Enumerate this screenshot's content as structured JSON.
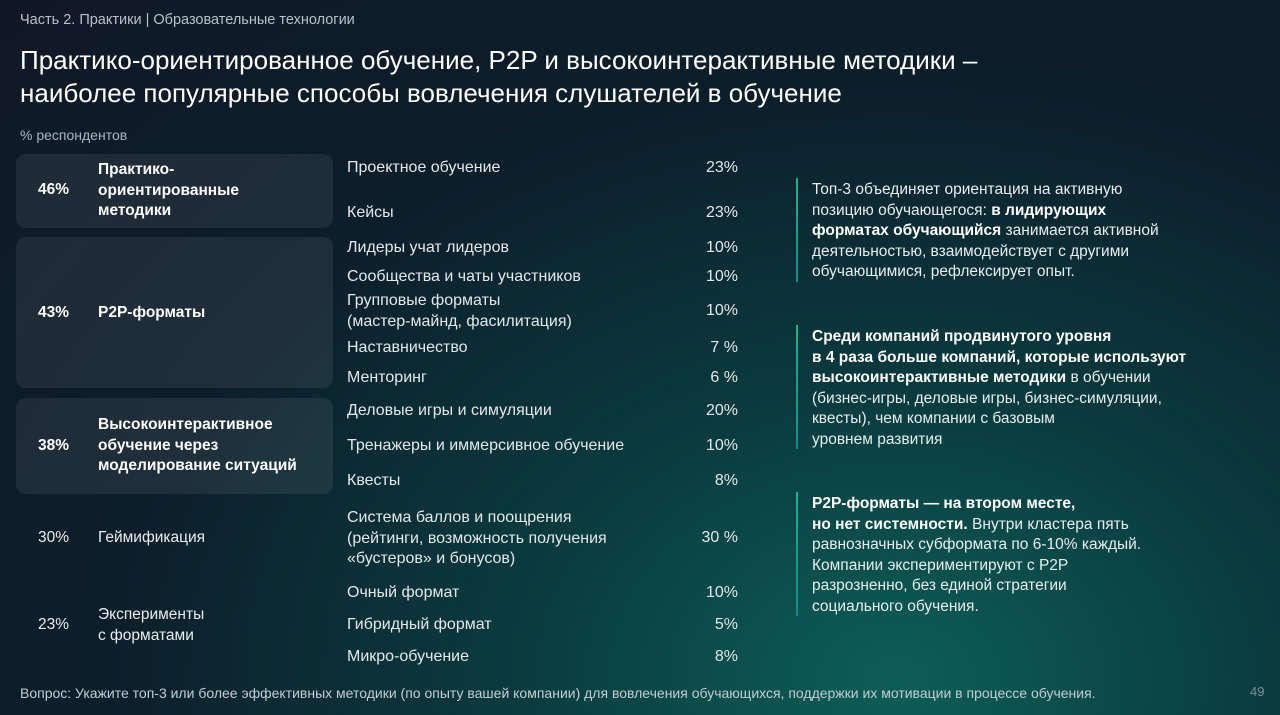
{
  "breadcrumb": "Часть 2. Практики | Образовательные технологии",
  "title_line1": "Практико-ориентированное обучение, P2P и высокоинтерактивные методики –",
  "title_line2": "наиболее популярные способы вовлечения слушателей в обучение",
  "unit_label": "% респондентов",
  "categories": [
    {
      "percent": "46%",
      "name_lines": [
        "Практико-",
        "ориентированные",
        "методики"
      ],
      "items": [
        {
          "label": [
            "Проектное обучение"
          ],
          "value": "23%"
        },
        {
          "label": [
            "Кейсы"
          ],
          "value": "23%"
        }
      ]
    },
    {
      "percent": "43%",
      "name_lines": [
        "P2P-форматы"
      ],
      "items": [
        {
          "label": [
            "Лидеры учат лидеров"
          ],
          "value": "10%"
        },
        {
          "label": [
            "Сообщества и чаты участников"
          ],
          "value": "10%"
        },
        {
          "label": [
            "Групповые форматы",
            "(мастер-майнд, фасилитация)"
          ],
          "value": "10%"
        },
        {
          "label": [
            "Наставничество"
          ],
          "value": "7 %"
        },
        {
          "label": [
            "Менторинг"
          ],
          "value": "6 %"
        }
      ]
    },
    {
      "percent": "38%",
      "name_lines": [
        "Высокоинтерактивное",
        "обучение через",
        "моделирование ситуаций"
      ],
      "items": [
        {
          "label": [
            "Деловые игры и симуляции"
          ],
          "value": "20%"
        },
        {
          "label": [
            "Тренажеры и иммерсивное обучение"
          ],
          "value": "10%"
        },
        {
          "label": [
            "Квесты"
          ],
          "value": "8%"
        }
      ]
    },
    {
      "percent": "30%",
      "name_lines": [
        "Геймификация"
      ],
      "items": [
        {
          "label": [
            "Система баллов и поощрения",
            "(рейтинги, возможность получения",
            "«бустеров» и бонусов)"
          ],
          "value": "30 %"
        }
      ]
    },
    {
      "percent": "23%",
      "name_lines": [
        "Эксперименты",
        "с форматами"
      ],
      "items": [
        {
          "label": [
            "Очный формат"
          ],
          "value": "10%"
        },
        {
          "label": [
            "Гибридный формат"
          ],
          "value": "5%"
        },
        {
          "label": [
            "Микро-обучение"
          ],
          "value": "8%"
        }
      ]
    }
  ],
  "notes": [
    {
      "line1": "Топ-3 объединяет ориентация на активную",
      "line2a": "позицию обучающегося: ",
      "line2b": "в лидирующих",
      "line3a": "форматах обучающийся",
      "line3b": " занимается активной",
      "line4": "деятельностью, взаимодействует с другими",
      "line5": "обучающимися, рефлексирует опыт."
    },
    {
      "line1": "Среди компаний продвинутого уровня",
      "line2": "в 4 раза больше компаний, которые используют",
      "line3a": "высокоинтерактивные методики",
      "line3b": " в обучении",
      "line4": "(бизнес-игры, деловые игры, бизнес-симуляции,",
      "line5": "квесты), чем компании с базовым",
      "line6": "уровнем развития"
    },
    {
      "line1": "P2P-форматы — на втором месте,",
      "line2a": "но нет системности.",
      "line2b": " Внутри кластера пять",
      "line3": "равнозначных субформата по 6-10% каждый.",
      "line4": "Компании экспериментируют с P2P",
      "line5": "разрозненно, без единой стратегии",
      "line6": "социального обучения."
    }
  ],
  "footer": "Вопрос: Укажите топ-3 или более эффективных методики (по опыту вашей компании) для вовлечения обучающихся, поддержки их мотивации в процессе обучения.",
  "page_number": "49"
}
